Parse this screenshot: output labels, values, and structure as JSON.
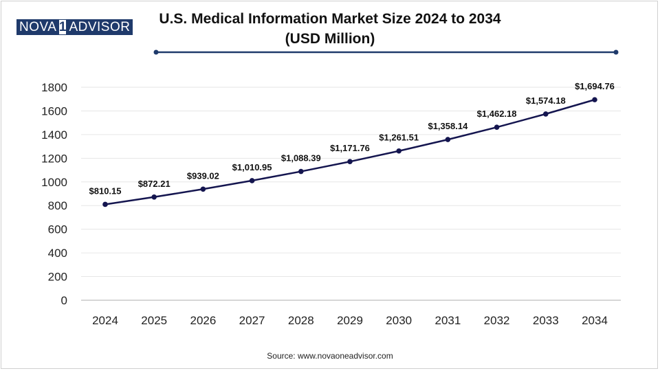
{
  "brand": {
    "part1": "NOVA",
    "mark": "1",
    "part2": "ADVISOR"
  },
  "source": "Source: www.novaoneadvisor.com",
  "colors": {
    "line": "#14154f",
    "brand": "#1f3a6b",
    "grid": "#e6e6e6"
  },
  "chart_data": {
    "type": "line",
    "title": "U.S. Medical Information Market Size 2024 to 2034 (USD Million)",
    "xlabel": "",
    "ylabel": "",
    "ylim": [
      0,
      1800
    ],
    "yticks": [
      "0",
      "200",
      "400",
      "600",
      "800",
      "1000",
      "1200",
      "1400",
      "1600",
      "1800"
    ],
    "grid": true,
    "categories": [
      "2024",
      "2025",
      "2026",
      "2027",
      "2028",
      "2029",
      "2030",
      "2031",
      "2032",
      "2033",
      "2034"
    ],
    "values": [
      810.15,
      872.21,
      939.02,
      1010.95,
      1088.39,
      1171.76,
      1261.51,
      1358.14,
      1462.18,
      1574.18,
      1694.76
    ],
    "labels": [
      "$810.15",
      "$872.21",
      "$939.02",
      "$1,010.95",
      "$1,088.39",
      "$1,171.76",
      "$1,261.51",
      "$1,358.14",
      "$1,462.18",
      "$1,574.18",
      "$1,694.76"
    ]
  }
}
